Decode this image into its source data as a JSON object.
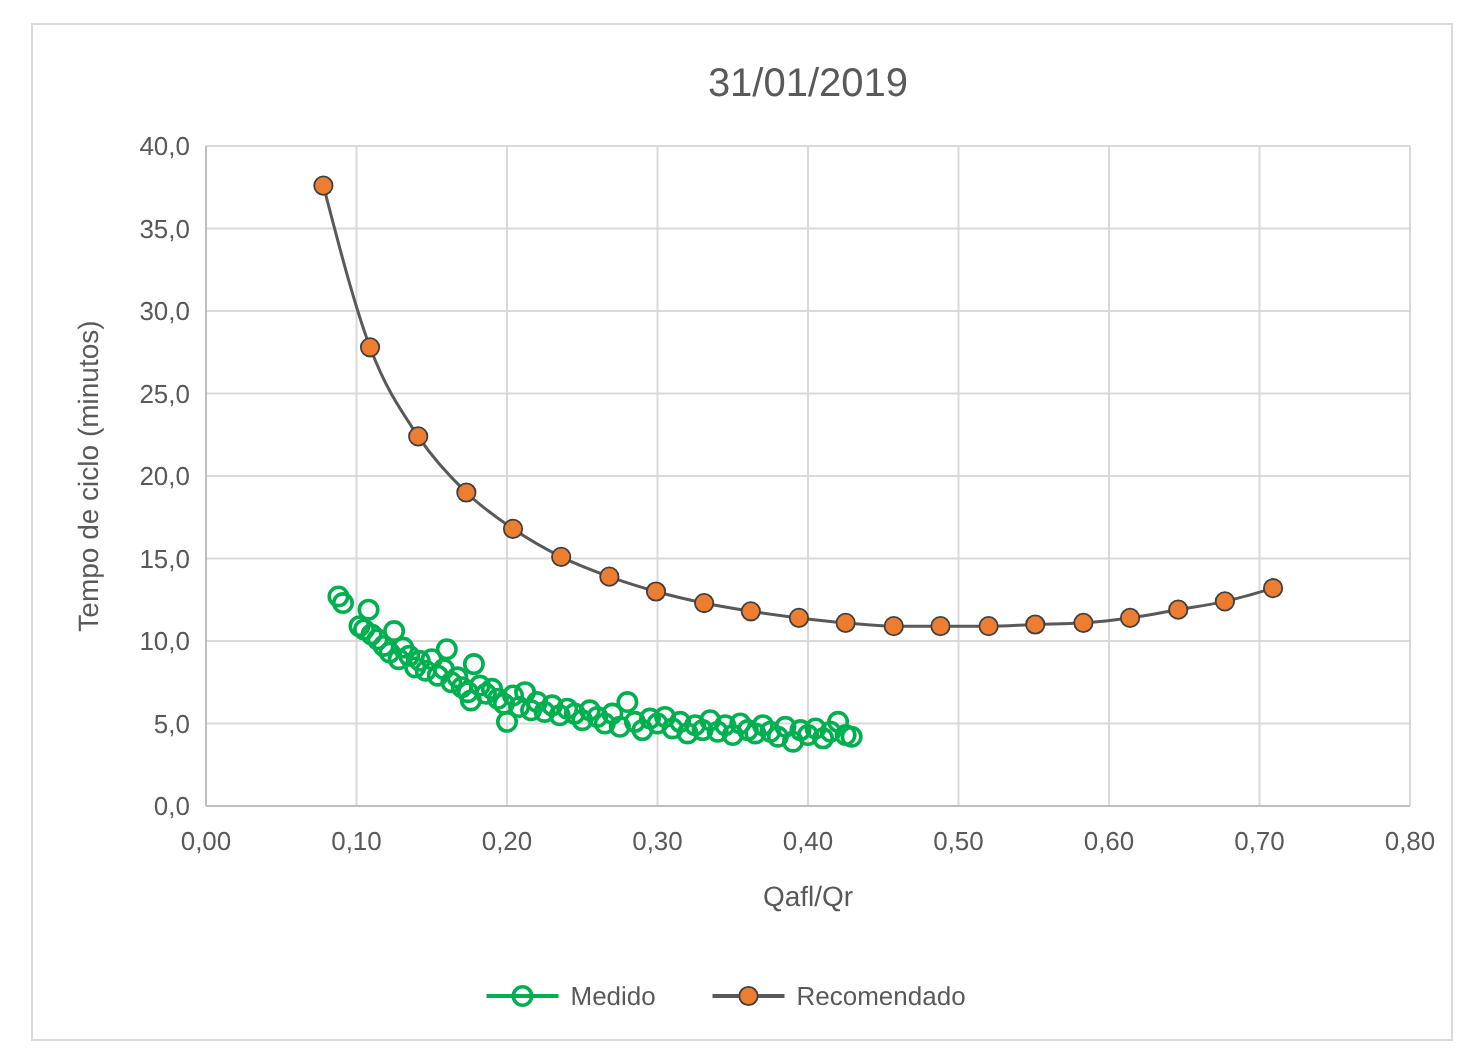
{
  "chart_data": {
    "type": "scatter",
    "title": "31/01/2019",
    "xlabel": "Qafl/Qr",
    "ylabel": "Tempo de ciclo (minutos)",
    "xlim": [
      0,
      0.8
    ],
    "ylim": [
      0,
      40
    ],
    "xticks": [
      {
        "value": 0,
        "label": "0,00"
      },
      {
        "value": 0.1,
        "label": "0,10"
      },
      {
        "value": 0.2,
        "label": "0,20"
      },
      {
        "value": 0.3,
        "label": "0,30"
      },
      {
        "value": 0.4,
        "label": "0,40"
      },
      {
        "value": 0.5,
        "label": "0,50"
      },
      {
        "value": 0.6,
        "label": "0,60"
      },
      {
        "value": 0.7,
        "label": "0,70"
      },
      {
        "value": 0.8,
        "label": "0,80"
      }
    ],
    "yticks": [
      {
        "value": 0,
        "label": "0,0"
      },
      {
        "value": 5,
        "label": "5,0"
      },
      {
        "value": 10,
        "label": "10,0"
      },
      {
        "value": 15,
        "label": "15,0"
      },
      {
        "value": 20,
        "label": "20,0"
      },
      {
        "value": 25,
        "label": "25,0"
      },
      {
        "value": 30,
        "label": "30,0"
      },
      {
        "value": 35,
        "label": "35,0"
      },
      {
        "value": 40,
        "label": "40,0"
      }
    ],
    "grid": true,
    "legend": "bottom",
    "marker": "circle",
    "series": [
      {
        "name": "Medido",
        "color": "#00b050",
        "x": [
          0.088,
          0.091,
          0.102,
          0.105,
          0.108,
          0.11,
          0.114,
          0.118,
          0.122,
          0.125,
          0.128,
          0.131,
          0.135,
          0.139,
          0.142,
          0.146,
          0.15,
          0.154,
          0.158,
          0.16,
          0.163,
          0.167,
          0.17,
          0.174,
          0.176,
          0.178,
          0.182,
          0.186,
          0.19,
          0.194,
          0.198,
          0.2,
          0.204,
          0.208,
          0.212,
          0.216,
          0.22,
          0.225,
          0.23,
          0.235,
          0.24,
          0.245,
          0.25,
          0.255,
          0.26,
          0.265,
          0.27,
          0.275,
          0.28,
          0.285,
          0.29,
          0.295,
          0.3,
          0.305,
          0.31,
          0.315,
          0.32,
          0.325,
          0.33,
          0.335,
          0.34,
          0.345,
          0.35,
          0.355,
          0.36,
          0.365,
          0.37,
          0.375,
          0.38,
          0.385,
          0.39,
          0.395,
          0.4,
          0.405,
          0.41,
          0.415,
          0.42,
          0.425,
          0.429
        ],
        "values": [
          12.7,
          12.3,
          10.9,
          10.7,
          11.9,
          10.4,
          10.1,
          9.7,
          9.3,
          10.6,
          8.9,
          9.6,
          9.1,
          8.4,
          8.8,
          8.2,
          8.9,
          7.9,
          8.3,
          9.5,
          7.5,
          7.8,
          7.2,
          6.9,
          6.4,
          8.6,
          7.3,
          6.8,
          7.1,
          6.5,
          6.2,
          5.1,
          6.7,
          6.0,
          6.9,
          5.8,
          6.3,
          5.7,
          6.1,
          5.5,
          5.9,
          5.6,
          5.2,
          5.8,
          5.4,
          5.0,
          5.6,
          4.8,
          6.3,
          5.1,
          4.6,
          5.3,
          5.0,
          5.4,
          4.7,
          5.1,
          4.4,
          4.9,
          4.6,
          5.2,
          4.5,
          4.9,
          4.3,
          5.0,
          4.6,
          4.4,
          4.9,
          4.5,
          4.2,
          4.8,
          3.9,
          4.6,
          4.3,
          4.7,
          4.1,
          4.5,
          5.1,
          4.3,
          4.2
        ]
      },
      {
        "name": "Recomendado",
        "type": "line",
        "color": "#ed7d31",
        "x": [
          0.078,
          0.109,
          0.141,
          0.173,
          0.204,
          0.236,
          0.268,
          0.299,
          0.331,
          0.362,
          0.394,
          0.425,
          0.457,
          0.488,
          0.52,
          0.551,
          0.583,
          0.614,
          0.646,
          0.677,
          0.709
        ],
        "values": [
          37.6,
          27.8,
          22.4,
          19.0,
          16.8,
          15.1,
          13.9,
          13.0,
          12.3,
          11.8,
          11.4,
          11.1,
          10.9,
          10.9,
          10.9,
          11.0,
          11.1,
          11.4,
          11.9,
          12.4,
          13.2
        ]
      }
    ]
  }
}
